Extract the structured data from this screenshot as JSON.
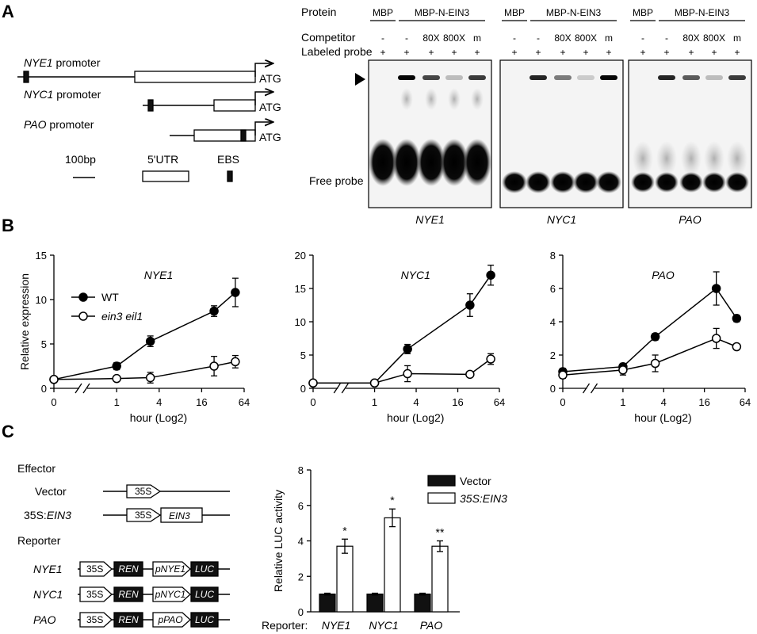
{
  "panels": {
    "a": "A",
    "b": "B",
    "c": "C"
  },
  "promoters": {
    "nye1": {
      "gene": "NYE1",
      "suffix": " promoter"
    },
    "nyc1": {
      "gene": "NYC1",
      "suffix": " promoter"
    },
    "pao": {
      "gene": "PAO",
      "suffix": " promoter"
    },
    "atg": "ATG",
    "legend": {
      "scale": "100bp",
      "utr": "5'UTR",
      "ebs": "EBS"
    }
  },
  "emsa": {
    "row_labels": {
      "protein": "Protein",
      "competitor": "Competitor",
      "probe": "Labeled probe"
    },
    "protein_mbp": "MBP",
    "protein_fusion": "MBP-N-EIN3",
    "competitor": [
      "-",
      "-",
      "80X",
      "800X",
      "m"
    ],
    "probe": [
      "+",
      "+",
      "+",
      "+",
      "+"
    ],
    "gels": [
      "NYE1",
      "NYC1",
      "PAO"
    ],
    "free_probe": "Free probe",
    "band_intensity": {
      "NYE1": [
        0,
        1.0,
        0.7,
        0.15,
        0.75
      ],
      "NYC1": [
        0,
        0.85,
        0.45,
        0.08,
        1.0
      ],
      "PAO": [
        0,
        0.85,
        0.6,
        0.15,
        0.75
      ]
    }
  },
  "expression": {
    "ylabel": "Relative expression",
    "xlabel": "hour (Log2)",
    "xticks": [
      "0",
      "1",
      "4",
      "16",
      "64"
    ],
    "legend": [
      "WT",
      "ein3 eil1"
    ]
  },
  "effector": {
    "title": "Effector",
    "vector": "Vector",
    "ein3_prefix": "35S:",
    "ein3_gene": "EIN3",
    "p35s": "35S"
  },
  "reporter": {
    "title": "Reporter",
    "rows": [
      {
        "name": "NYE1",
        "promoter": "pNYE1"
      },
      {
        "name": "NYC1",
        "promoter": "pNYC1"
      },
      {
        "name": "PAO",
        "promoter": "pPAO"
      }
    ],
    "p35s": "35S",
    "ren": "REN",
    "luc": "LUC"
  },
  "chart_data": [
    {
      "type": "line",
      "title": "NYE1",
      "xlabel": "hour (Log2)",
      "ylabel": "Relative expression",
      "x": [
        0,
        1,
        3,
        24,
        48
      ],
      "xticks": [
        "0",
        "1",
        "4",
        "16",
        "64"
      ],
      "ylim": [
        0,
        15
      ],
      "yticks": [
        0,
        5,
        10,
        15
      ],
      "series": [
        {
          "name": "WT",
          "values": [
            1.0,
            2.5,
            5.3,
            8.7,
            10.8
          ],
          "errors": [
            0.2,
            0.4,
            0.6,
            0.6,
            1.6
          ]
        },
        {
          "name": "ein3 eil1",
          "values": [
            1.0,
            1.1,
            1.2,
            2.5,
            3.0
          ],
          "errors": [
            0.2,
            0.2,
            0.6,
            1.1,
            0.7
          ]
        }
      ]
    },
    {
      "type": "line",
      "title": "NYC1",
      "xlabel": "hour (Log2)",
      "x": [
        0,
        1,
        3,
        24,
        48
      ],
      "xticks": [
        "0",
        "1",
        "4",
        "16",
        "64"
      ],
      "ylim": [
        0,
        20
      ],
      "yticks": [
        0,
        5,
        10,
        15,
        20
      ],
      "series": [
        {
          "name": "WT",
          "values": [
            0.8,
            0.8,
            5.9,
            12.5,
            17.0
          ],
          "errors": [
            0.3,
            0.3,
            0.7,
            1.7,
            1.5
          ]
        },
        {
          "name": "ein3 eil1",
          "values": [
            0.8,
            0.8,
            2.2,
            2.1,
            4.4
          ],
          "errors": [
            0.3,
            0.3,
            1.2,
            0.3,
            0.8
          ]
        }
      ]
    },
    {
      "type": "line",
      "title": "PAO",
      "xlabel": "hour (Log2)",
      "x": [
        0,
        1,
        3,
        24,
        48
      ],
      "xticks": [
        "0",
        "1",
        "4",
        "16",
        "64"
      ],
      "ylim": [
        0,
        8
      ],
      "yticks": [
        0,
        2,
        4,
        6,
        8
      ],
      "series": [
        {
          "name": "WT",
          "values": [
            1.0,
            1.3,
            3.1,
            6.0,
            4.2
          ],
          "errors": [
            0.2,
            0.2,
            0.2,
            1.0,
            0.2
          ]
        },
        {
          "name": "ein3 eil1",
          "values": [
            0.8,
            1.1,
            1.5,
            3.0,
            2.5
          ],
          "errors": [
            0.2,
            0.3,
            0.5,
            0.6,
            0.1
          ]
        }
      ]
    },
    {
      "type": "bar",
      "ylabel": "Relative LUC activity",
      "categories": [
        "NYE1",
        "NYC1",
        "PAO"
      ],
      "category_prefix": "Reporter:",
      "ylim": [
        0,
        8
      ],
      "yticks": [
        0,
        2,
        4,
        6,
        8
      ],
      "series": [
        {
          "name": "Vector",
          "values": [
            1.0,
            1.0,
            1.0
          ],
          "errors": [
            0.05,
            0.05,
            0.05
          ],
          "color": "#111111"
        },
        {
          "name": "35S:EIN3",
          "values": [
            3.7,
            5.3,
            3.7
          ],
          "errors": [
            0.4,
            0.5,
            0.3
          ],
          "color": "#ffffff"
        }
      ],
      "significance": [
        "*",
        "*",
        "**"
      ]
    }
  ]
}
